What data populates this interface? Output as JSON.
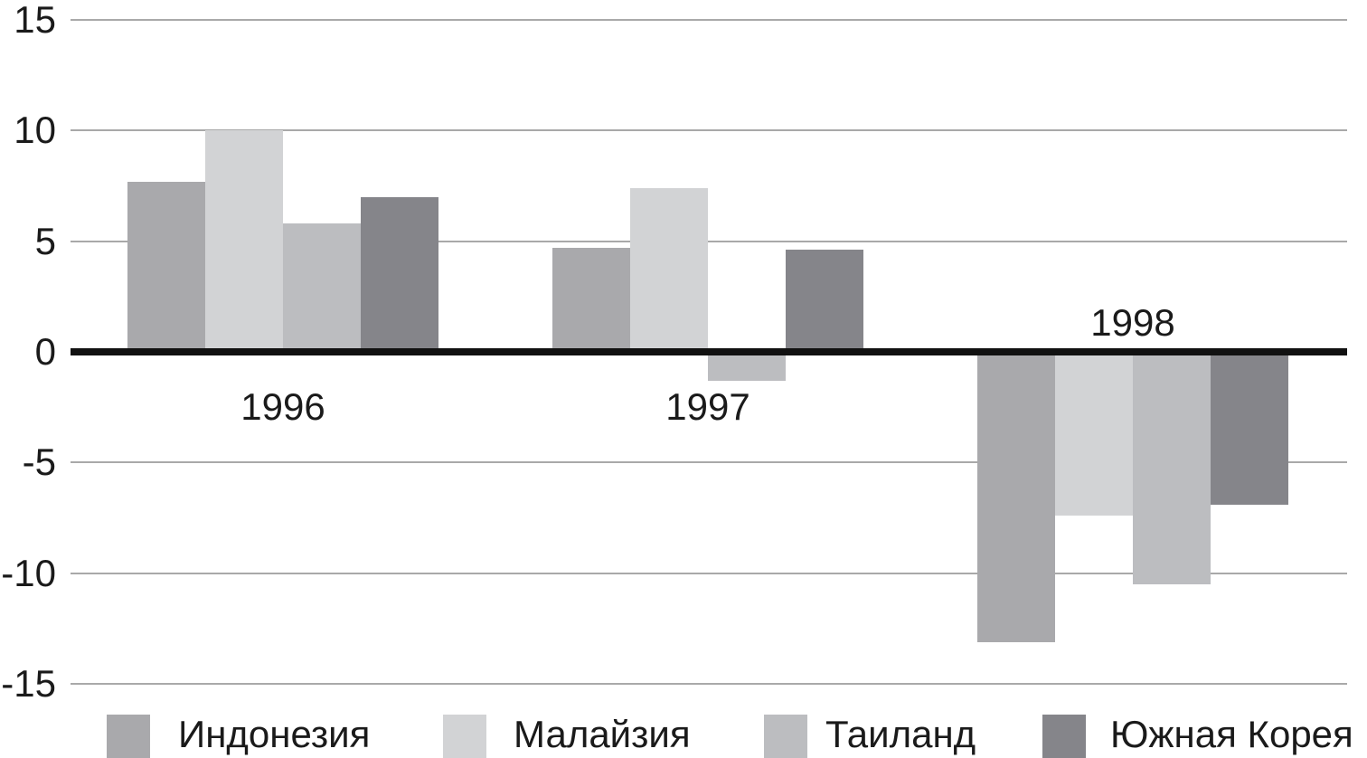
{
  "chart_data": {
    "type": "bar",
    "title": "",
    "xlabel": "",
    "ylabel": "",
    "categories": [
      "1996",
      "1997",
      "1998"
    ],
    "series": [
      {
        "key": "indonesia",
        "name": "Индонезия",
        "color": "#a9a9ac",
        "values": [
          7.7,
          4.7,
          -13.1
        ]
      },
      {
        "key": "malaysia",
        "name": "Малайзия",
        "color": "#d2d3d5",
        "values": [
          10.0,
          7.4,
          -7.4
        ]
      },
      {
        "key": "thailand",
        "name": "Таиланд",
        "color": "#bcbdc0",
        "values": [
          5.8,
          -1.3,
          -10.5
        ]
      },
      {
        "key": "south-korea",
        "name": "Южная Корея",
        "color": "#85858a",
        "values": [
          7.0,
          4.6,
          -6.9
        ]
      }
    ],
    "y_ticks": [
      15,
      10,
      5,
      0,
      -5,
      -10,
      -15
    ],
    "y_tick_labels": [
      "15",
      "10",
      "5",
      "0",
      "-5",
      "-10",
      "-15"
    ],
    "ylim": [
      -15,
      15
    ],
    "grid": true,
    "legend_position": "bottom",
    "colors": {
      "gridline": "#a9a9a9",
      "zero_line": "#111111",
      "text": "#1a1a1a",
      "background": "#ffffff"
    }
  }
}
